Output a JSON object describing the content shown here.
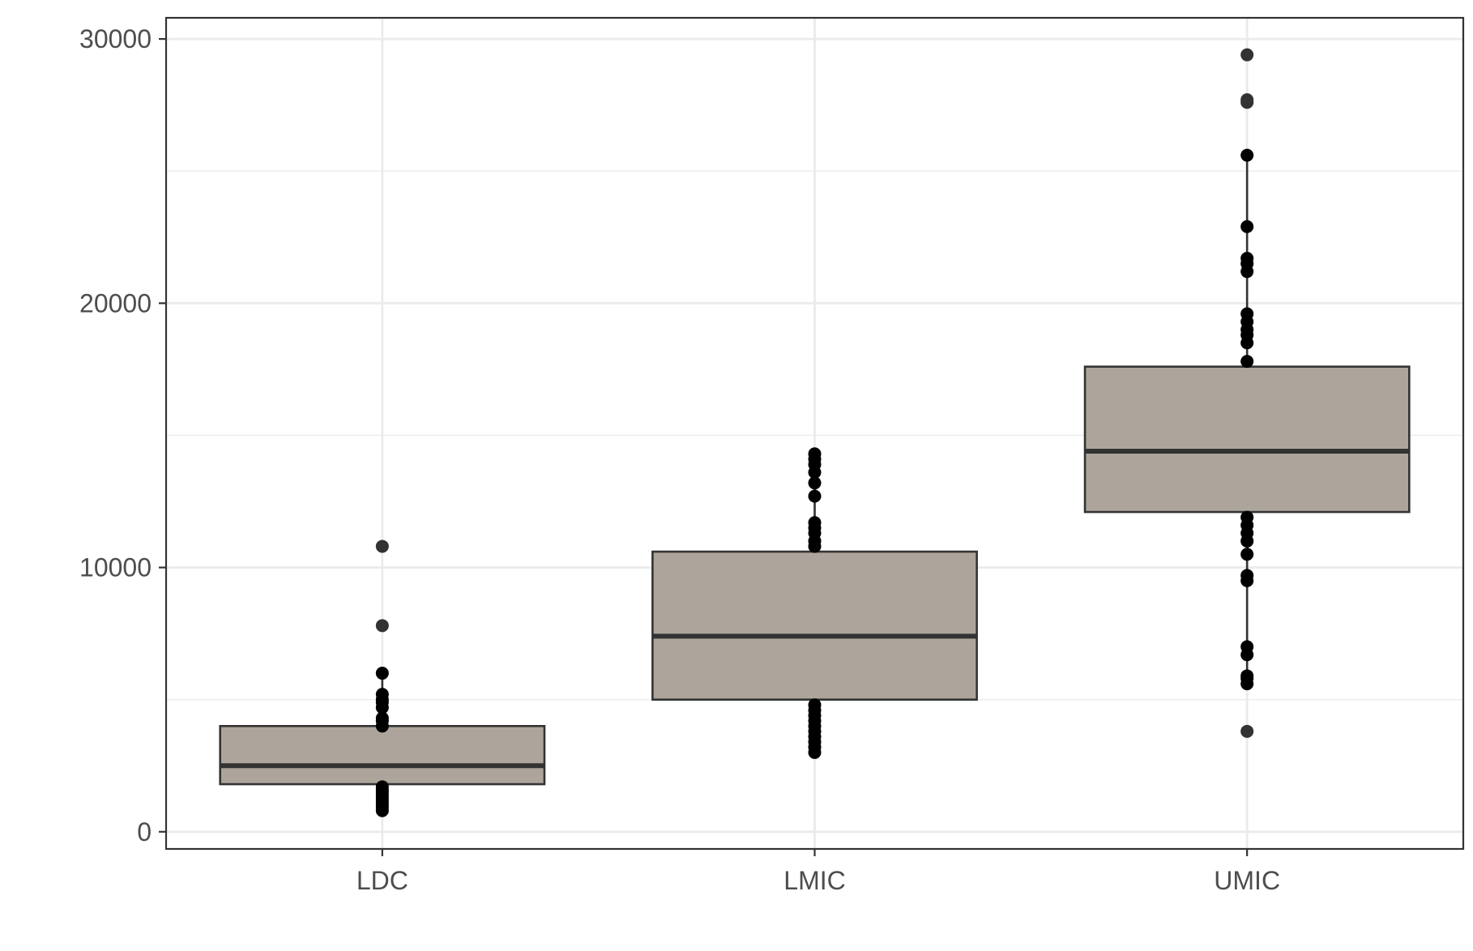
{
  "chart_data": {
    "type": "box",
    "title": "",
    "xlabel": "",
    "ylabel": "",
    "ylim": [
      -650,
      30800
    ],
    "yticks": [
      0,
      10000,
      20000,
      30000
    ],
    "ytick_labels": [
      "0",
      "10000",
      "20000",
      "30000"
    ],
    "minor_yticks": [
      5000,
      15000,
      25000
    ],
    "grid": true,
    "legend": "none",
    "box_fill": "#ada59b",
    "box_stroke": "#333333",
    "point_color": "#000000",
    "categories": [
      "LDC",
      "LMIC",
      "UMIC"
    ],
    "boxes": [
      {
        "category": "LDC",
        "q1": 1800,
        "median": 2500,
        "q3": 4000,
        "whisker_low": 800,
        "whisker_high": 6000,
        "outliers": [
          7800,
          10800
        ],
        "points": [
          800,
          900,
          1000,
          1100,
          1200,
          1300,
          1400,
          1500,
          1600,
          1700,
          4000,
          4200,
          4300,
          4700,
          4900,
          5000,
          5200,
          6000
        ]
      },
      {
        "category": "LMIC",
        "q1": 5000,
        "median": 7400,
        "q3": 10600,
        "whisker_low": 3000,
        "whisker_high": 14300,
        "outliers": [],
        "points": [
          3000,
          3200,
          3400,
          3600,
          3800,
          4000,
          4200,
          4400,
          4600,
          4800,
          10800,
          11000,
          11300,
          11500,
          11700,
          12700,
          13200,
          13600,
          13900,
          14100,
          14300
        ]
      },
      {
        "category": "UMIC",
        "q1": 12100,
        "median": 14400,
        "q3": 17600,
        "whisker_low": 5600,
        "whisker_high": 25600,
        "outliers": [
          3800,
          27600,
          27700,
          29400
        ],
        "points": [
          5600,
          5800,
          5900,
          6700,
          7000,
          9500,
          9700,
          10500,
          11000,
          11300,
          11600,
          11900,
          17800,
          18500,
          18800,
          19000,
          19300,
          19600,
          21200,
          21500,
          21700,
          22900,
          25600
        ]
      }
    ]
  }
}
